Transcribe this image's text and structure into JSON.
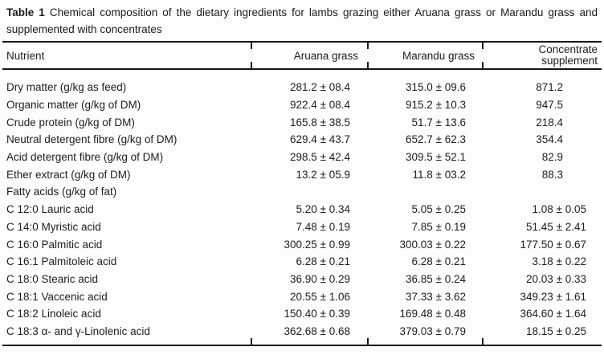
{
  "caption": {
    "label": "Table 1",
    "text": "Chemical composition of the dietary ingredients for lambs grazing either Aruana grass or Marandu grass and supplemented with concentrates"
  },
  "table": {
    "columns": [
      "Nutrient",
      "Aruana grass",
      "Marandu grass",
      "Concentrate supplement"
    ],
    "rows": [
      {
        "nutrient": "Dry matter (g/kg as feed)",
        "aruana": "281.2 ± 08.4",
        "marandu": "315.0 ± 09.6",
        "concentrate": "871.2"
      },
      {
        "nutrient": "Organic matter (g/kg of DM)",
        "aruana": "922.4 ± 08.4",
        "marandu": "915.2 ± 10.3",
        "concentrate": "947.5"
      },
      {
        "nutrient": "Crude protein (g/kg of DM)",
        "aruana": "165.8 ± 38.5",
        "marandu": "51.7 ± 13.6",
        "concentrate": "218.4"
      },
      {
        "nutrient": "Neutral detergent fibre (g/kg of DM)",
        "aruana": "629.4 ± 43.7",
        "marandu": "652.7 ± 62.3",
        "concentrate": "354.4"
      },
      {
        "nutrient": "Acid detergent fibre (g/kg of DM)",
        "aruana": "298.5 ± 42.4",
        "marandu": "309.5 ± 52.1",
        "concentrate": "82.9"
      },
      {
        "nutrient": "Ether extract (g/kg of DM)",
        "aruana": "13.2 ± 05.9",
        "marandu": "11.8 ± 03.2",
        "concentrate": "88.3"
      },
      {
        "nutrient": "Fatty acids (g/kg of fat)",
        "aruana": "",
        "marandu": "",
        "concentrate": ""
      },
      {
        "nutrient": "C 12:0 Lauric acid",
        "aruana": "5.20 ± 0.34",
        "marandu": "5.05 ± 0.25",
        "concentrate": "1.08 ± 0.05"
      },
      {
        "nutrient": "C 14:0 Myristic acid",
        "aruana": "7.48 ± 0.19",
        "marandu": "7.85 ± 0.19",
        "concentrate": "51.45 ± 2.41"
      },
      {
        "nutrient": "C 16:0 Palmitic acid",
        "aruana": "300.25 ± 0.99",
        "marandu": "300.03 ± 0.22",
        "concentrate": "177.50 ± 0.67"
      },
      {
        "nutrient": "C 16:1 Palmitoleic acid",
        "aruana": "6.28 ± 0.21",
        "marandu": "6.28 ± 0.21",
        "concentrate": "3.18 ± 0.22"
      },
      {
        "nutrient": "C 18:0 Stearic acid",
        "aruana": "36.90 ± 0.29",
        "marandu": "36.85 ± 0.24",
        "concentrate": "20.03 ± 0.33"
      },
      {
        "nutrient": "C 18:1 Vaccenic acid",
        "aruana": "20.55 ± 1.06",
        "marandu": "37.33 ± 3.62",
        "concentrate": "349.23 ± 1.61"
      },
      {
        "nutrient": "C 18:2 Linoleic acid",
        "aruana": "150.40 ± 0.39",
        "marandu": "169.48 ± 0.48",
        "concentrate": "364.60 ± 1.64"
      },
      {
        "nutrient": "C 18:3 α- and γ-Linolenic acid",
        "aruana": "362.68 ± 0.68",
        "marandu": "379.03 ± 0.79",
        "concentrate": "18.15 ± 0.25"
      }
    ]
  }
}
